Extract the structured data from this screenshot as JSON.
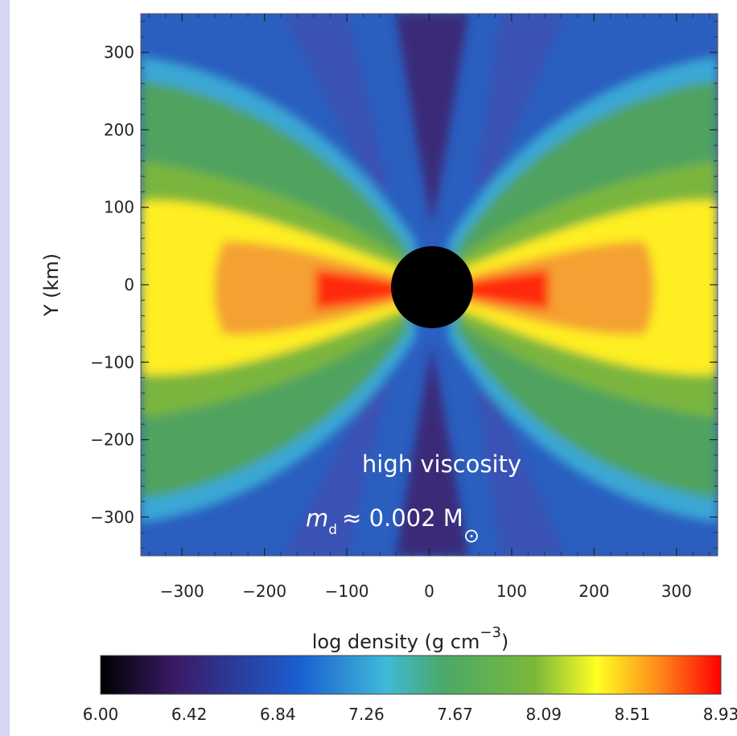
{
  "chart_data": {
    "type": "heatmap",
    "title": "",
    "xlabel": "",
    "ylabel": "Y (km)",
    "colorbar_label_prefix": "log density (g cm",
    "colorbar_label_exponent": "−3",
    "colorbar_label_suffix": ")",
    "xlim": [
      -350,
      350
    ],
    "ylim": [
      -350,
      350
    ],
    "x_ticks": [
      -300,
      -200,
      -100,
      0,
      100,
      200,
      300
    ],
    "x_tick_labels": [
      "−300",
      "−200",
      "−100",
      "0",
      "100",
      "200",
      "300"
    ],
    "y_ticks": [
      300,
      200,
      100,
      0,
      -100,
      -200,
      -300
    ],
    "y_tick_labels": [
      "300",
      "200",
      "100",
      "0",
      "−100",
      "−200",
      "−300"
    ],
    "colorbar_range": [
      6.0,
      8.93
    ],
    "colorbar_ticks": [
      "6.00",
      "6.42",
      "6.84",
      "7.26",
      "7.67",
      "8.09",
      "8.51",
      "8.93"
    ],
    "colormap": [
      "#000000",
      "#3a1a66",
      "#1a5ed0",
      "#3fb9d8",
      "#49a96a",
      "#7bb83a",
      "#ffff22",
      "#ff8a1a",
      "#ff0000"
    ],
    "central_object": {
      "center": [
        0,
        0
      ],
      "radius_km": 52,
      "color": "#000000"
    },
    "annotation_line1": "high viscosity",
    "annotation_m": "m",
    "annotation_sub": "d",
    "annotation_value": "≈ 0.002 M",
    "annotation_sun": "⊙"
  }
}
